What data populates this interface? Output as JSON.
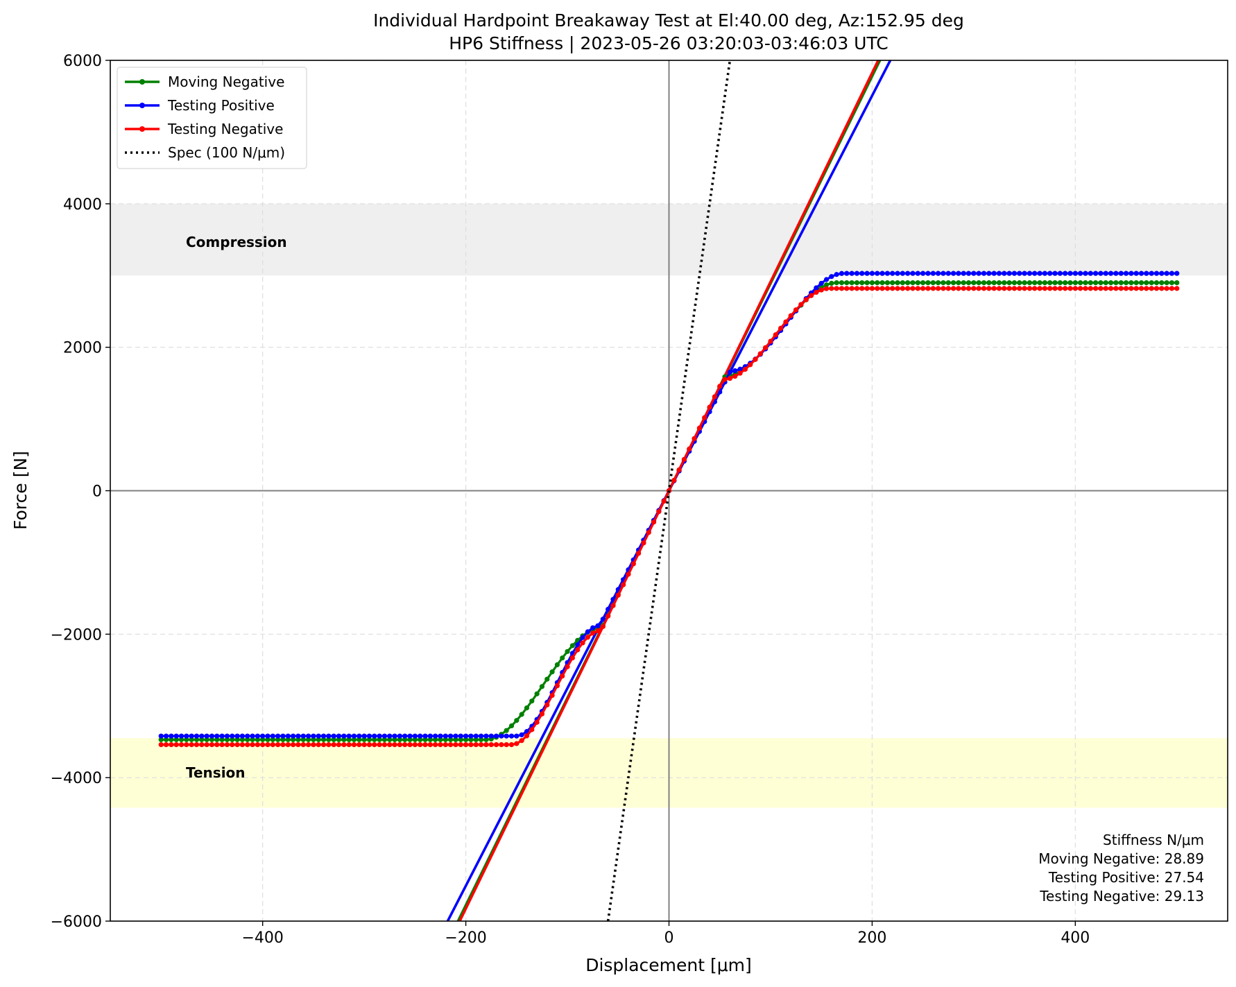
{
  "chart_data": {
    "type": "line",
    "title": "Individual Hardpoint Breakaway Test at El:40.00 deg, Az:152.95 deg",
    "subtitle": "HP6 Stiffness | 2023-05-26 03:20:03-03:46:03 UTC",
    "xlabel": "Displacement [μm]",
    "ylabel": "Force [N]",
    "xlim": [
      -550,
      550
    ],
    "ylim": [
      -6000,
      6000
    ],
    "xticks": [
      -400,
      -200,
      0,
      200,
      400
    ],
    "yticks": [
      -6000,
      -4000,
      -2000,
      0,
      2000,
      4000,
      6000
    ],
    "xtick_labels": [
      "−400",
      "−200",
      "0",
      "200",
      "400"
    ],
    "ytick_labels": [
      "−6000",
      "−4000",
      "−2000",
      "0",
      "2000",
      "4000",
      "6000"
    ],
    "grid": true,
    "legend_position": "top-left",
    "regions": [
      {
        "label": "Compression",
        "ymin": 3000,
        "ymax": 4000,
        "color": "#efefef"
      },
      {
        "label": "Tension",
        "ymin": -4420,
        "ymax": -3450,
        "color": "#ffffd6"
      }
    ],
    "series": [
      {
        "name": "Moving Negative",
        "color": "#008000",
        "style": "line-markers",
        "plateau_neg": -3470,
        "plateau_pos": 2900,
        "neg_knee": -180,
        "pos_knee": 165,
        "slope": 28.89
      },
      {
        "name": "Testing Positive",
        "color": "#0000ff",
        "style": "line-markers",
        "plateau_neg": -3420,
        "plateau_pos": 3030,
        "neg_knee": -150,
        "pos_knee": 172,
        "slope": 27.54
      },
      {
        "name": "Testing Negative",
        "color": "#ff0000",
        "style": "line-markers",
        "plateau_neg": -3540,
        "plateau_pos": 2820,
        "neg_knee": -155,
        "pos_knee": 158,
        "slope": 29.13
      },
      {
        "name": "Spec (100 N/μm)",
        "color": "#000000",
        "style": "dotted",
        "slope": 100
      }
    ],
    "fit_lines": [
      {
        "series": "Moving Negative",
        "slope": 28.89
      },
      {
        "series": "Testing Positive",
        "slope": 27.54
      },
      {
        "series": "Testing Negative",
        "slope": 29.13
      }
    ],
    "x_range": [
      -500,
      500
    ],
    "stats": {
      "heading": "Stiffness N/μm",
      "lines": [
        "Moving Negative: 28.89",
        "Testing Positive: 27.54",
        "Testing Negative: 29.13"
      ]
    },
    "reference_lines": {
      "x": 0,
      "y": 0
    }
  }
}
